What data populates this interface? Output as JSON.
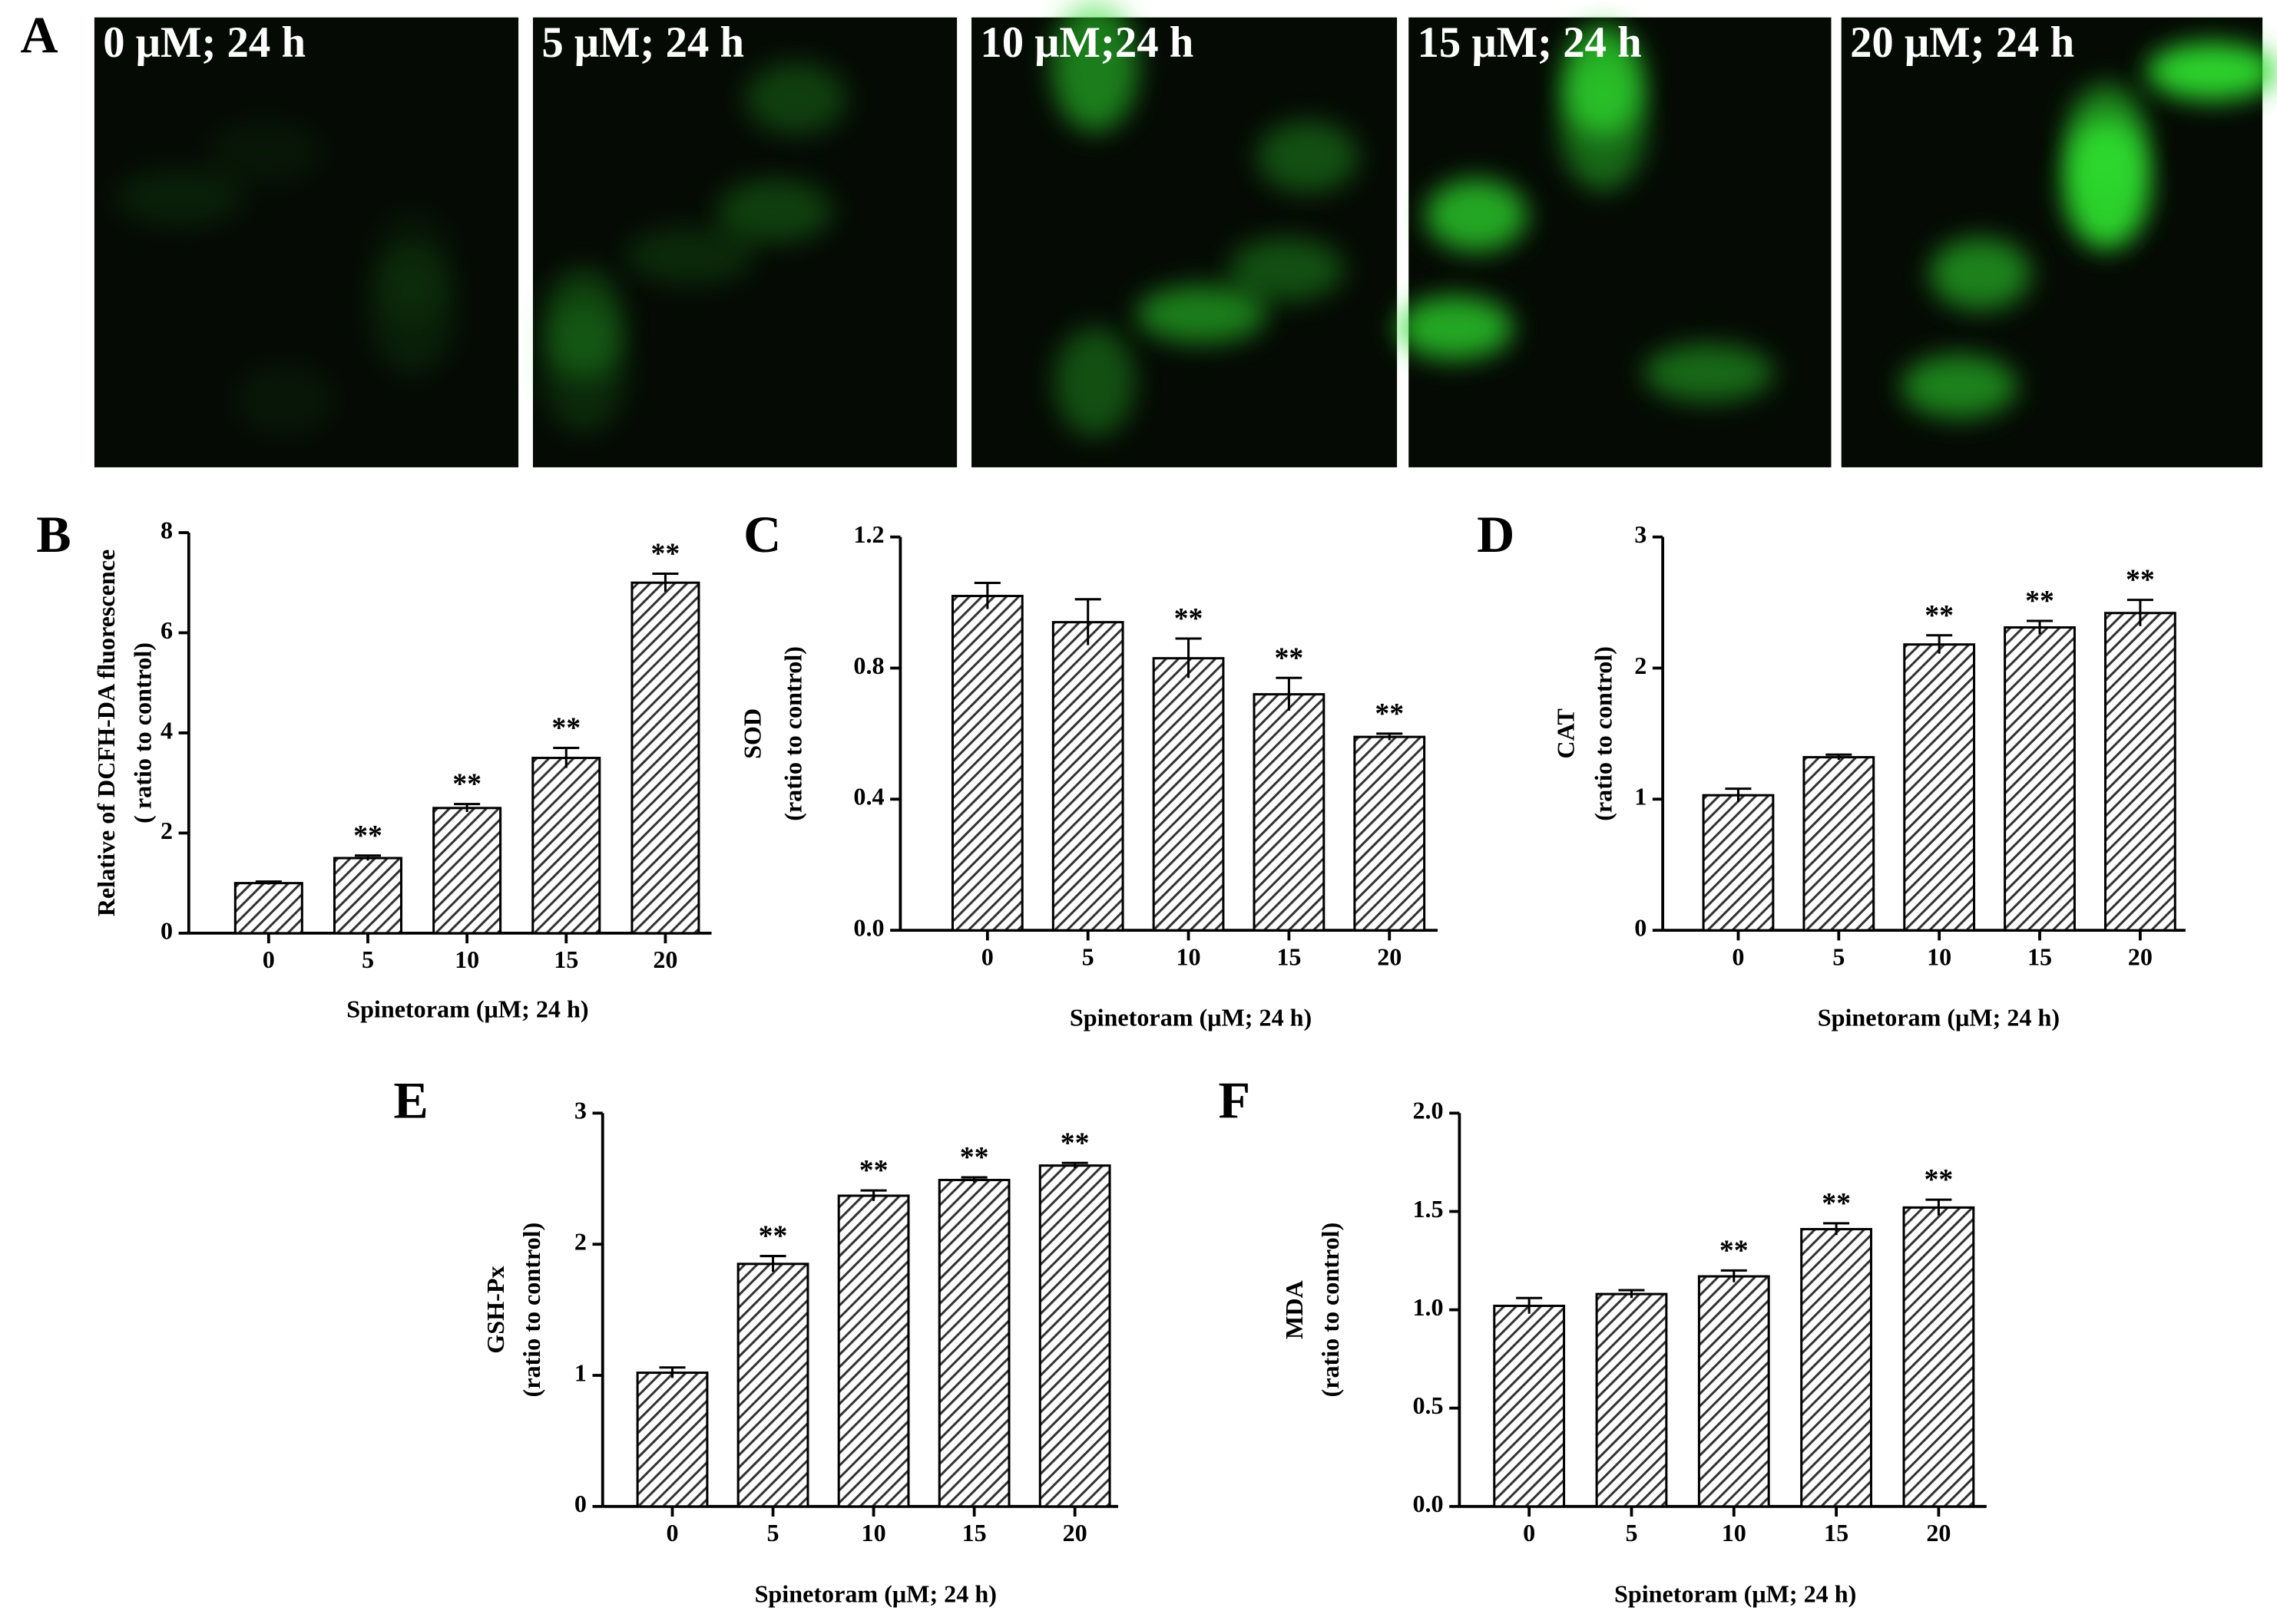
{
  "panel_a": {
    "label": "A",
    "images": [
      "0 μM; 24 h",
      "5 μM; 24 h",
      "10 μM;24 h",
      "15 μM; 24 h",
      "20 μM; 24 h"
    ]
  },
  "chart_data": [
    {
      "type": "bar",
      "panel": "B",
      "color": "#333333",
      "ylabel": [
        "Relative of DCFH-DA fluorescence",
        "( ratio to control)"
      ],
      "xlabel": "Spinetoram (μM; 24 h)",
      "categories": [
        "0",
        "5",
        "10",
        "15",
        "20"
      ],
      "values": [
        1.0,
        1.5,
        2.5,
        3.5,
        7.0
      ],
      "errors": [
        0.03,
        0.05,
        0.08,
        0.2,
        0.18
      ],
      "significance": [
        null,
        "**",
        "**",
        "**",
        "**"
      ],
      "ylim": [
        0,
        8
      ],
      "yticks": [
        0,
        2,
        4,
        6,
        8
      ]
    },
    {
      "type": "bar",
      "panel": "C",
      "color": "#333333",
      "ylabel": [
        "SOD",
        "(ratio to control)"
      ],
      "xlabel": "Spinetoram (μM; 24 h)",
      "categories": [
        "0",
        "5",
        "10",
        "15",
        "20"
      ],
      "values": [
        1.02,
        0.94,
        0.83,
        0.72,
        0.59
      ],
      "errors": [
        0.04,
        0.07,
        0.06,
        0.05,
        0.01
      ],
      "significance": [
        null,
        null,
        "**",
        "**",
        "**"
      ],
      "ylim": [
        0,
        1.2
      ],
      "yticks": [
        {
          "value": 0,
          "label": "0.0"
        },
        0.4,
        0.8,
        1.2
      ]
    },
    {
      "type": "bar",
      "panel": "D",
      "color": "#333333",
      "ylabel": [
        "CAT",
        "(ratio to control)"
      ],
      "xlabel": "Spinetoram (μM; 24 h)",
      "categories": [
        "0",
        "5",
        "10",
        "15",
        "20"
      ],
      "values": [
        1.03,
        1.32,
        2.18,
        2.31,
        2.42
      ],
      "errors": [
        0.05,
        0.02,
        0.07,
        0.05,
        0.1
      ],
      "significance": [
        null,
        null,
        "**",
        "**",
        "**"
      ],
      "ylim": [
        0,
        3
      ],
      "yticks": [
        0,
        1,
        2,
        3
      ]
    },
    {
      "type": "bar",
      "panel": "E",
      "color": "#333333",
      "ylabel": [
        "GSH-Px",
        "(ratio to control)"
      ],
      "xlabel": "Spinetoram (μM; 24 h)",
      "categories": [
        "0",
        "5",
        "10",
        "15",
        "20"
      ],
      "values": [
        1.02,
        1.85,
        2.37,
        2.49,
        2.6
      ],
      "errors": [
        0.04,
        0.06,
        0.04,
        0.02,
        0.02
      ],
      "significance": [
        null,
        "**",
        "**",
        "**",
        "**"
      ],
      "ylim": [
        0,
        3
      ],
      "yticks": [
        0,
        1,
        2,
        3
      ]
    },
    {
      "type": "bar",
      "panel": "F",
      "color": "#333333",
      "ylabel": [
        "MDA",
        "(ratio to control)"
      ],
      "xlabel": "Spinetoram (μM; 24 h)",
      "categories": [
        "0",
        "5",
        "10",
        "15",
        "20"
      ],
      "values": [
        1.02,
        1.08,
        1.17,
        1.41,
        1.52
      ],
      "errors": [
        0.04,
        0.02,
        0.03,
        0.03,
        0.04
      ],
      "significance": [
        null,
        null,
        "**",
        "**",
        "**"
      ],
      "ylim": [
        0,
        2
      ],
      "yticks": [
        {
          "value": 0,
          "label": "0.0"
        },
        0.5,
        {
          "value": 1,
          "label": "1.0"
        },
        1.5,
        {
          "value": 2,
          "label": "2.0"
        }
      ]
    }
  ]
}
